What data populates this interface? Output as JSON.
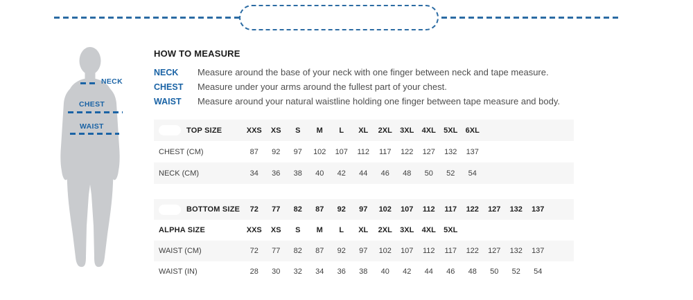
{
  "colors": {
    "accent_blue": "#1a63a5",
    "dash_line_blue": "#2b6ba3",
    "row_shade": "#f6f6f6",
    "silhouette_gray": "#c9cbce",
    "text_dark": "#1f1f1f",
    "text_body": "#4e4e4e"
  },
  "figure": {
    "labels": [
      {
        "text": "NECK"
      },
      {
        "text": "CHEST"
      },
      {
        "text": "WAIST"
      }
    ]
  },
  "how_to_measure": {
    "title": "HOW TO MEASURE",
    "items": [
      {
        "label": "NECK",
        "text": "Measure around the base of your neck with one finger between neck and tape measure."
      },
      {
        "label": "CHEST",
        "text": "Measure under your arms around the fullest part of your chest."
      },
      {
        "label": "WAIST",
        "text": "Measure around your natural waistline holding one finger between tape measure and body."
      }
    ]
  },
  "size_tables": [
    {
      "name": "top-size-table",
      "rows": [
        {
          "label": "TOP SIZE",
          "bold": true,
          "shaded": true,
          "patch": true,
          "values": [
            "XXS",
            "XS",
            "S",
            "M",
            "L",
            "XL",
            "2XL",
            "3XL",
            "4XL",
            "5XL",
            "6XL"
          ]
        },
        {
          "label": "CHEST (CM)",
          "bold": false,
          "shaded": false,
          "patch": false,
          "values": [
            "87",
            "92",
            "97",
            "102",
            "107",
            "112",
            "117",
            "122",
            "127",
            "132",
            "137"
          ]
        },
        {
          "label": "NECK (CM)",
          "bold": false,
          "shaded": true,
          "patch": false,
          "values": [
            "34",
            "36",
            "38",
            "40",
            "42",
            "44",
            "46",
            "48",
            "50",
            "52",
            "54"
          ]
        }
      ]
    },
    {
      "name": "bottom-size-table",
      "rows": [
        {
          "label": "BOTTOM SIZE",
          "bold": true,
          "shaded": true,
          "patch": true,
          "values": [
            "72",
            "77",
            "82",
            "87",
            "92",
            "97",
            "102",
            "107",
            "112",
            "117",
            "122",
            "127",
            "132",
            "137"
          ]
        },
        {
          "label": "ALPHA SIZE",
          "bold": true,
          "shaded": false,
          "patch": false,
          "values": [
            "XXS",
            "XS",
            "S",
            "M",
            "L",
            "XL",
            "2XL",
            "3XL",
            "4XL",
            "5XL"
          ]
        },
        {
          "label": "WAIST (CM)",
          "bold": false,
          "shaded": true,
          "patch": false,
          "values": [
            "72",
            "77",
            "82",
            "87",
            "92",
            "97",
            "102",
            "107",
            "112",
            "117",
            "122",
            "127",
            "132",
            "137"
          ]
        },
        {
          "label": "WAIST (IN)",
          "bold": false,
          "shaded": false,
          "patch": false,
          "values": [
            "28",
            "30",
            "32",
            "34",
            "36",
            "38",
            "40",
            "42",
            "44",
            "46",
            "48",
            "50",
            "52",
            "54"
          ]
        }
      ]
    }
  ]
}
